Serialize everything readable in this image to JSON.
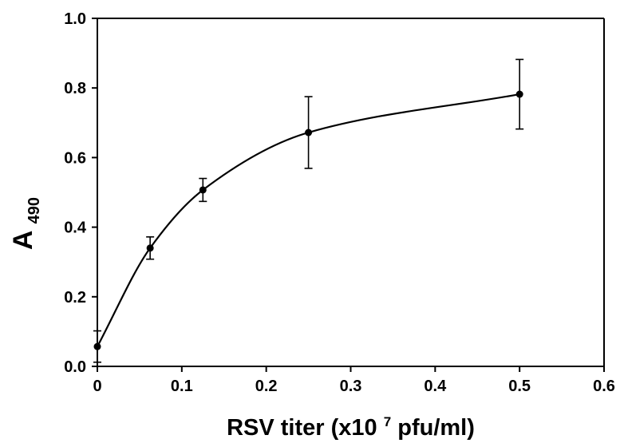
{
  "chart_data": {
    "type": "line",
    "title": "",
    "xlabel": {
      "before": "RSV titer (x10",
      "superscript": "7",
      "after": " pfu/ml)"
    },
    "ylabel": {
      "main": "A",
      "subscript": "490"
    },
    "xlim": [
      0,
      0.6
    ],
    "ylim": [
      0.0,
      1.0
    ],
    "x_ticks": [
      "0",
      "0.1",
      "0.2",
      "0.3",
      "0.4",
      "0.5",
      "0.6"
    ],
    "y_ticks": [
      "0.0",
      "0.2",
      "0.4",
      "0.6",
      "0.8",
      "1.0"
    ],
    "grid": false,
    "series": [
      {
        "x": [
          0,
          0.0625,
          0.125,
          0.25,
          0.5
        ],
        "y": [
          0.057,
          0.34,
          0.507,
          0.672,
          0.782
        ],
        "error": [
          0.045,
          0.032,
          0.033,
          0.103,
          0.1
        ],
        "smooth": true,
        "color": "#000000"
      }
    ]
  }
}
